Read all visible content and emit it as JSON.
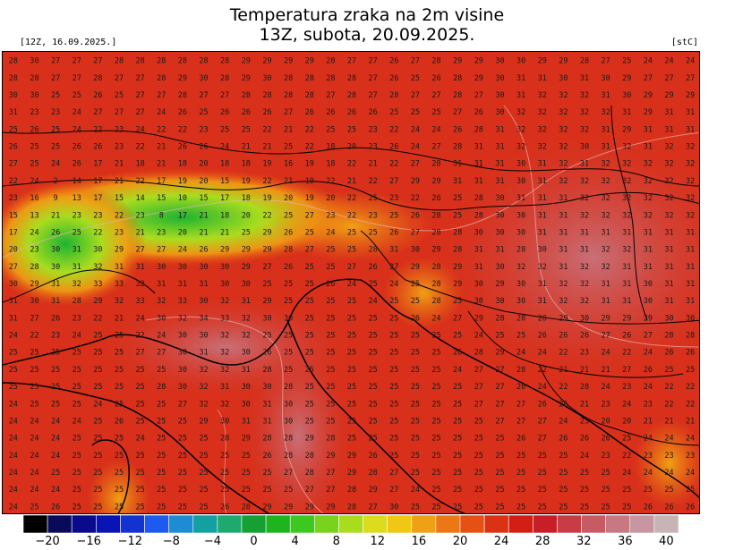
{
  "header": {
    "title_line1": "Temperatura zraka na 2m visine",
    "title_line2": "13Z, subota, 20.09.2025.",
    "run_label": "[12Z, 16.09.2025.]",
    "unit_label": "[stC]"
  },
  "legend": {
    "ticks": [
      "−20",
      "−16",
      "−12",
      "−8",
      "−4",
      "0",
      "4",
      "8",
      "12",
      "16",
      "20",
      "24",
      "28",
      "32",
      "36",
      "40"
    ],
    "colors": [
      "#000000",
      "#0a0a5a",
      "#0a0a8c",
      "#0a14b4",
      "#1432d2",
      "#1e5af0",
      "#1e8cd2",
      "#14a0a0",
      "#1eaa6e",
      "#14a032",
      "#1eb41e",
      "#3cc81e",
      "#78d21e",
      "#aadc1e",
      "#dcdc1e",
      "#f0c814",
      "#f0a014",
      "#eb7814",
      "#e65014",
      "#dc3214",
      "#d21e14",
      "#c81e28",
      "#c83c46",
      "#c85a64",
      "#c87882",
      "#c896a0",
      "#c8b4b4"
    ]
  },
  "map": {
    "labels": [
      "28",
      "30",
      "27",
      "27",
      "27",
      "28",
      "28",
      "28",
      "28",
      "28",
      "28",
      "29",
      "29",
      "29",
      "29",
      "28",
      "27",
      "27",
      "26",
      "27",
      "28",
      "29",
      "29",
      "30",
      "30",
      "29",
      "29",
      "28",
      "27",
      "25",
      "24",
      "24",
      "24",
      "28",
      "28",
      "27",
      "27",
      "28",
      "27",
      "27",
      "28",
      "29",
      "30",
      "28",
      "29",
      "30",
      "28",
      "28",
      "28",
      "28",
      "27",
      "26",
      "25",
      "26",
      "28",
      "29",
      "30",
      "31",
      "31",
      "30",
      "31",
      "30",
      "29",
      "27",
      "27",
      "27",
      "30",
      "30",
      "25",
      "25",
      "26",
      "25",
      "27",
      "27",
      "28",
      "27",
      "27",
      "28",
      "28",
      "28",
      "28",
      "27",
      "28",
      "27",
      "28",
      "27",
      "27",
      "28",
      "27",
      "30",
      "31",
      "32",
      "32",
      "32",
      "31",
      "30",
      "29",
      "29",
      "29",
      "31",
      "23",
      "23",
      "24",
      "27",
      "27",
      "27",
      "24",
      "26",
      "25",
      "26",
      "26",
      "26",
      "27",
      "26",
      "26",
      "26",
      "26",
      "25",
      "25",
      "25",
      "27",
      "26",
      "30",
      "32",
      "32",
      "32",
      "32",
      "32",
      "31",
      "29",
      "31",
      "31",
      "25",
      "26",
      "25",
      "24",
      "22",
      "23",
      "24",
      "22",
      "22",
      "23",
      "25",
      "25",
      "22",
      "21",
      "22",
      "25",
      "25",
      "23",
      "22",
      "24",
      "24",
      "26",
      "28",
      "31",
      "32",
      "32",
      "32",
      "32",
      "31",
      "29",
      "31",
      "31",
      "31",
      "26",
      "25",
      "25",
      "26",
      "26",
      "23",
      "22",
      "21",
      "26",
      "26",
      "24",
      "21",
      "21",
      "25",
      "22",
      "18",
      "20",
      "23",
      "26",
      "24",
      "27",
      "28",
      "31",
      "31",
      "32",
      "32",
      "32",
      "30",
      "31",
      "32",
      "31",
      "32",
      "32",
      "27",
      "25",
      "24",
      "26",
      "17",
      "21",
      "18",
      "21",
      "18",
      "20",
      "18",
      "18",
      "19",
      "16",
      "19",
      "18",
      "22",
      "21",
      "22",
      "27",
      "28",
      "31",
      "31",
      "31",
      "30",
      "31",
      "32",
      "31",
      "32",
      "32",
      "32",
      "32",
      "32",
      "22",
      "24",
      "2",
      "14",
      "17",
      "21",
      "22",
      "17",
      "19",
      "20",
      "15",
      "19",
      "22",
      "21",
      "19",
      "22",
      "21",
      "22",
      "27",
      "29",
      "29",
      "31",
      "31",
      "31",
      "30",
      "31",
      "32",
      "32",
      "32",
      "32",
      "32",
      "32",
      "32",
      "23",
      "16",
      "9",
      "13",
      "17",
      "15",
      "14",
      "15",
      "10",
      "15",
      "17",
      "18",
      "19",
      "20",
      "19",
      "20",
      "22",
      "25",
      "23",
      "22",
      "26",
      "25",
      "28",
      "30",
      "31",
      "31",
      "31",
      "32",
      "32",
      "32",
      "32",
      "32",
      "32",
      "15",
      "13",
      "21",
      "23",
      "23",
      "22",
      "23",
      "8",
      "17",
      "21",
      "18",
      "20",
      "22",
      "25",
      "27",
      "23",
      "22",
      "23",
      "25",
      "26",
      "28",
      "25",
      "28",
      "30",
      "30",
      "31",
      "31",
      "32",
      "32",
      "32",
      "32",
      "32",
      "32",
      "17",
      "24",
      "26",
      "25",
      "22",
      "23",
      "21",
      "23",
      "20",
      "21",
      "21",
      "25",
      "29",
      "26",
      "25",
      "24",
      "25",
      "25",
      "26",
      "27",
      "28",
      "28",
      "30",
      "30",
      "30",
      "31",
      "31",
      "31",
      "31",
      "31",
      "31",
      "31",
      "31",
      "20",
      "23",
      "30",
      "31",
      "30",
      "29",
      "27",
      "27",
      "24",
      "26",
      "29",
      "29",
      "29",
      "28",
      "27",
      "25",
      "25",
      "28",
      "31",
      "30",
      "29",
      "28",
      "31",
      "31",
      "28",
      "30",
      "31",
      "31",
      "32",
      "32",
      "31",
      "31",
      "31",
      "27",
      "28",
      "30",
      "31",
      "32",
      "31",
      "31",
      "30",
      "30",
      "30",
      "30",
      "29",
      "27",
      "26",
      "25",
      "25",
      "27",
      "26",
      "27",
      "29",
      "28",
      "29",
      "31",
      "30",
      "32",
      "32",
      "31",
      "32",
      "32",
      "31",
      "31",
      "31",
      "31",
      "30",
      "29",
      "31",
      "32",
      "33",
      "33",
      "32",
      "31",
      "31",
      "31",
      "30",
      "30",
      "25",
      "25",
      "25",
      "26",
      "24",
      "25",
      "24",
      "25",
      "28",
      "29",
      "30",
      "29",
      "30",
      "31",
      "32",
      "32",
      "31",
      "31",
      "30",
      "31",
      "31",
      "31",
      "30",
      "31",
      "28",
      "29",
      "32",
      "33",
      "32",
      "33",
      "30",
      "32",
      "31",
      "29",
      "25",
      "25",
      "25",
      "25",
      "24",
      "25",
      "25",
      "28",
      "25",
      "30",
      "30",
      "30",
      "31",
      "32",
      "32",
      "31",
      "31",
      "30",
      "31",
      "31",
      "31",
      "27",
      "26",
      "23",
      "22",
      "21",
      "24",
      "30",
      "32",
      "34",
      "33",
      "32",
      "30",
      "30",
      "25",
      "25",
      "25",
      "25",
      "25",
      "26",
      "24",
      "27",
      "29",
      "28",
      "28",
      "28",
      "29",
      "30",
      "29",
      "29",
      "29",
      "30",
      "30",
      "24",
      "22",
      "23",
      "24",
      "25",
      "25",
      "22",
      "24",
      "30",
      "30",
      "32",
      "32",
      "25",
      "25",
      "25",
      "25",
      "25",
      "25",
      "25",
      "25",
      "25",
      "25",
      "24",
      "25",
      "25",
      "26",
      "26",
      "26",
      "27",
      "26",
      "27",
      "28",
      "28",
      "25",
      "25",
      "25",
      "25",
      "25",
      "25",
      "27",
      "27",
      "30",
      "31",
      "32",
      "30",
      "26",
      "25",
      "25",
      "25",
      "25",
      "25",
      "25",
      "25",
      "25",
      "26",
      "28",
      "29",
      "24",
      "24",
      "22",
      "23",
      "24",
      "22",
      "24",
      "26",
      "26",
      "25",
      "25",
      "25",
      "25",
      "25",
      "25",
      "25",
      "25",
      "30",
      "32",
      "32",
      "31",
      "28",
      "25",
      "25",
      "25",
      "25",
      "25",
      "25",
      "25",
      "25",
      "24",
      "27",
      "27",
      "28",
      "22",
      "21",
      "21",
      "21",
      "27",
      "26",
      "25",
      "25",
      "25",
      "25",
      "25",
      "25",
      "25",
      "25",
      "25",
      "28",
      "30",
      "32",
      "31",
      "30",
      "30",
      "28",
      "25",
      "25",
      "25",
      "25",
      "25",
      "25",
      "25",
      "25",
      "27",
      "27",
      "26",
      "24",
      "22",
      "28",
      "24",
      "23",
      "24",
      "22",
      "22",
      "24",
      "25",
      "25",
      "25",
      "24",
      "25",
      "25",
      "25",
      "27",
      "32",
      "32",
      "30",
      "31",
      "30",
      "25",
      "25",
      "25",
      "25",
      "25",
      "25",
      "25",
      "25",
      "27",
      "27",
      "27",
      "26",
      "26",
      "21",
      "23",
      "24",
      "23",
      "22",
      "22",
      "24",
      "24",
      "24",
      "24",
      "25",
      "26",
      "25",
      "25",
      "25",
      "29",
      "30",
      "31",
      "31",
      "30",
      "25",
      "25",
      "25",
      "25",
      "25",
      "25",
      "25",
      "25",
      "25",
      "27",
      "27",
      "27",
      "24",
      "23",
      "20",
      "20",
      "21",
      "21",
      "21",
      "24",
      "24",
      "24",
      "25",
      "25",
      "25",
      "24",
      "25",
      "25",
      "25",
      "28",
      "29",
      "28",
      "28",
      "29",
      "28",
      "25",
      "25",
      "25",
      "25",
      "25",
      "25",
      "25",
      "25",
      "26",
      "27",
      "26",
      "26",
      "26",
      "25",
      "24",
      "24",
      "24",
      "24",
      "24",
      "24",
      "25",
      "25",
      "25",
      "25",
      "25",
      "25",
      "25",
      "25",
      "25",
      "26",
      "28",
      "28",
      "29",
      "29",
      "26",
      "25",
      "25",
      "25",
      "25",
      "25",
      "25",
      "25",
      "25",
      "25",
      "24",
      "23",
      "22",
      "23",
      "23",
      "23",
      "24",
      "24",
      "25",
      "25",
      "25",
      "25",
      "25",
      "25",
      "25",
      "25",
      "25",
      "25",
      "25",
      "27",
      "28",
      "27",
      "29",
      "28",
      "27",
      "25",
      "25",
      "25",
      "25",
      "25",
      "25",
      "25",
      "25",
      "25",
      "25",
      "24",
      "24",
      "24",
      "24",
      "24",
      "24",
      "24",
      "25",
      "25",
      "25",
      "25",
      "25",
      "25",
      "25",
      "25",
      "25",
      "25",
      "25",
      "27",
      "27",
      "28",
      "29",
      "27",
      "24",
      "25",
      "25",
      "25",
      "25",
      "25",
      "25",
      "25",
      "25",
      "25",
      "25",
      "25",
      "25",
      "25",
      "24",
      "25",
      "26",
      "25",
      "25",
      "25",
      "25",
      "25",
      "25",
      "25",
      "26",
      "28",
      "29",
      "29",
      "29",
      "29",
      "28",
      "27",
      "30",
      "25",
      "25",
      "25",
      "25",
      "25",
      "25",
      "25",
      "25",
      "25",
      "25",
      "25",
      "26",
      "26",
      "26"
    ]
  }
}
